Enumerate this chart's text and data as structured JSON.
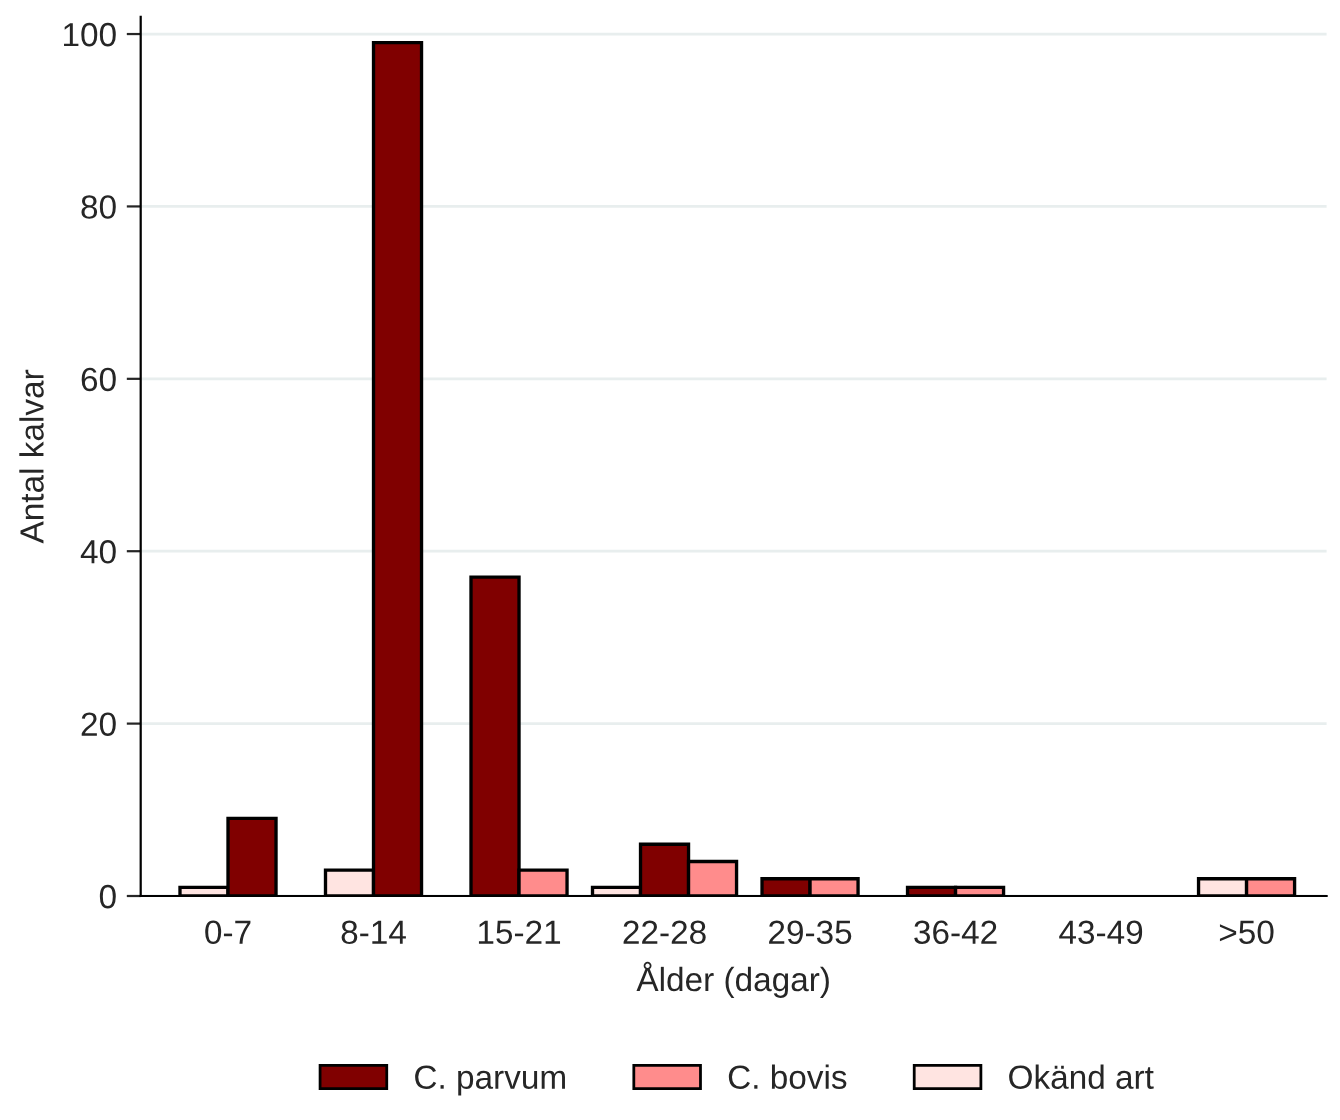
{
  "chart_data": {
    "type": "bar",
    "xlabel": "Ålder (dagar)",
    "ylabel": "Antal kalvar",
    "categories": [
      "0-7",
      "8-14",
      "15-21",
      "22-28",
      "29-35",
      "36-42",
      "43-49",
      ">50"
    ],
    "series": [
      {
        "name": "Okänd art",
        "color": "#ffe4e1",
        "values": [
          1,
          3,
          null,
          1,
          null,
          null,
          null,
          2
        ]
      },
      {
        "name": "C. parvum",
        "color": "#800000",
        "values": [
          9,
          99,
          37,
          6,
          2,
          1,
          null,
          null
        ]
      },
      {
        "name": "C. bovis",
        "color": "#ff8c8c",
        "values": [
          null,
          null,
          3,
          4,
          2,
          1,
          null,
          2
        ]
      }
    ],
    "ylim": [
      0,
      102
    ],
    "yticks": [
      0,
      20,
      40,
      60,
      80,
      100
    ],
    "grid": "y",
    "legend": "bottom"
  }
}
